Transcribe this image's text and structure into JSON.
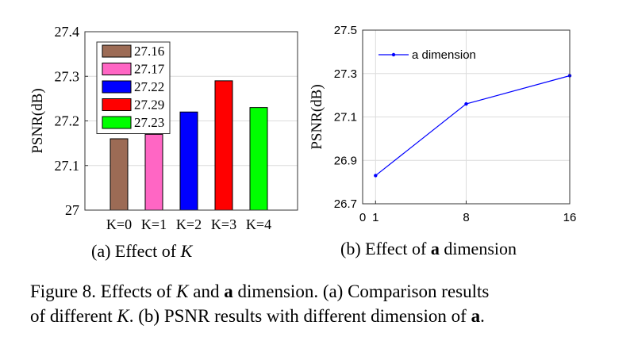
{
  "chart_data": [
    {
      "type": "bar",
      "title": "",
      "xlabel": "",
      "ylabel": "PSNR(dB)",
      "ylim": [
        27.0,
        27.4
      ],
      "yticks": [
        "27",
        "27.1",
        "27.2",
        "27.3",
        "27.4"
      ],
      "categories": [
        "K=0",
        "K=1",
        "K=2",
        "K=3",
        "K=4"
      ],
      "values": [
        27.16,
        27.17,
        27.22,
        27.29,
        27.23
      ],
      "colors": [
        "#9c6b55",
        "#ff66c4",
        "#0000ff",
        "#ff0000",
        "#00ff00"
      ],
      "legend": {
        "position": "top-left",
        "entries": [
          "27.16",
          "27.17",
          "27.22",
          "27.29",
          "27.23"
        ]
      },
      "grid": true
    },
    {
      "type": "line",
      "title": "",
      "xlabel": "",
      "ylabel": "PSNR(dB)",
      "xlim": [
        0,
        16
      ],
      "ylim": [
        26.7,
        27.5
      ],
      "xticks": [
        "0",
        "1",
        "8",
        "16"
      ],
      "yticks": [
        "26.7",
        "26.9",
        "27.1",
        "27.3",
        "27.5"
      ],
      "series": [
        {
          "name": "a dimension",
          "x": [
            1,
            8,
            16
          ],
          "y": [
            26.83,
            27.16,
            27.29
          ],
          "color": "#0000ff"
        }
      ],
      "legend": {
        "position": "top-left",
        "entries": [
          "a dimension"
        ]
      },
      "grid": true
    }
  ],
  "subcaptions": {
    "a_prefix": "(a) Effect of",
    "a_var": "K",
    "b_prefix": "(b) Effect of",
    "b_var": "a",
    "b_suffix": "dimension"
  },
  "caption": {
    "prefix": "Figure 8.  Effects of",
    "var_K": "K",
    "and": "and",
    "var_a": "a",
    "rest1": "dimension.  (a) Comparison results",
    "line2_start": "of different",
    "var_K2": "K",
    "line2_mid": ". (b) PSNR results with different dimension of",
    "var_a2": "a",
    "line2_end": "."
  }
}
